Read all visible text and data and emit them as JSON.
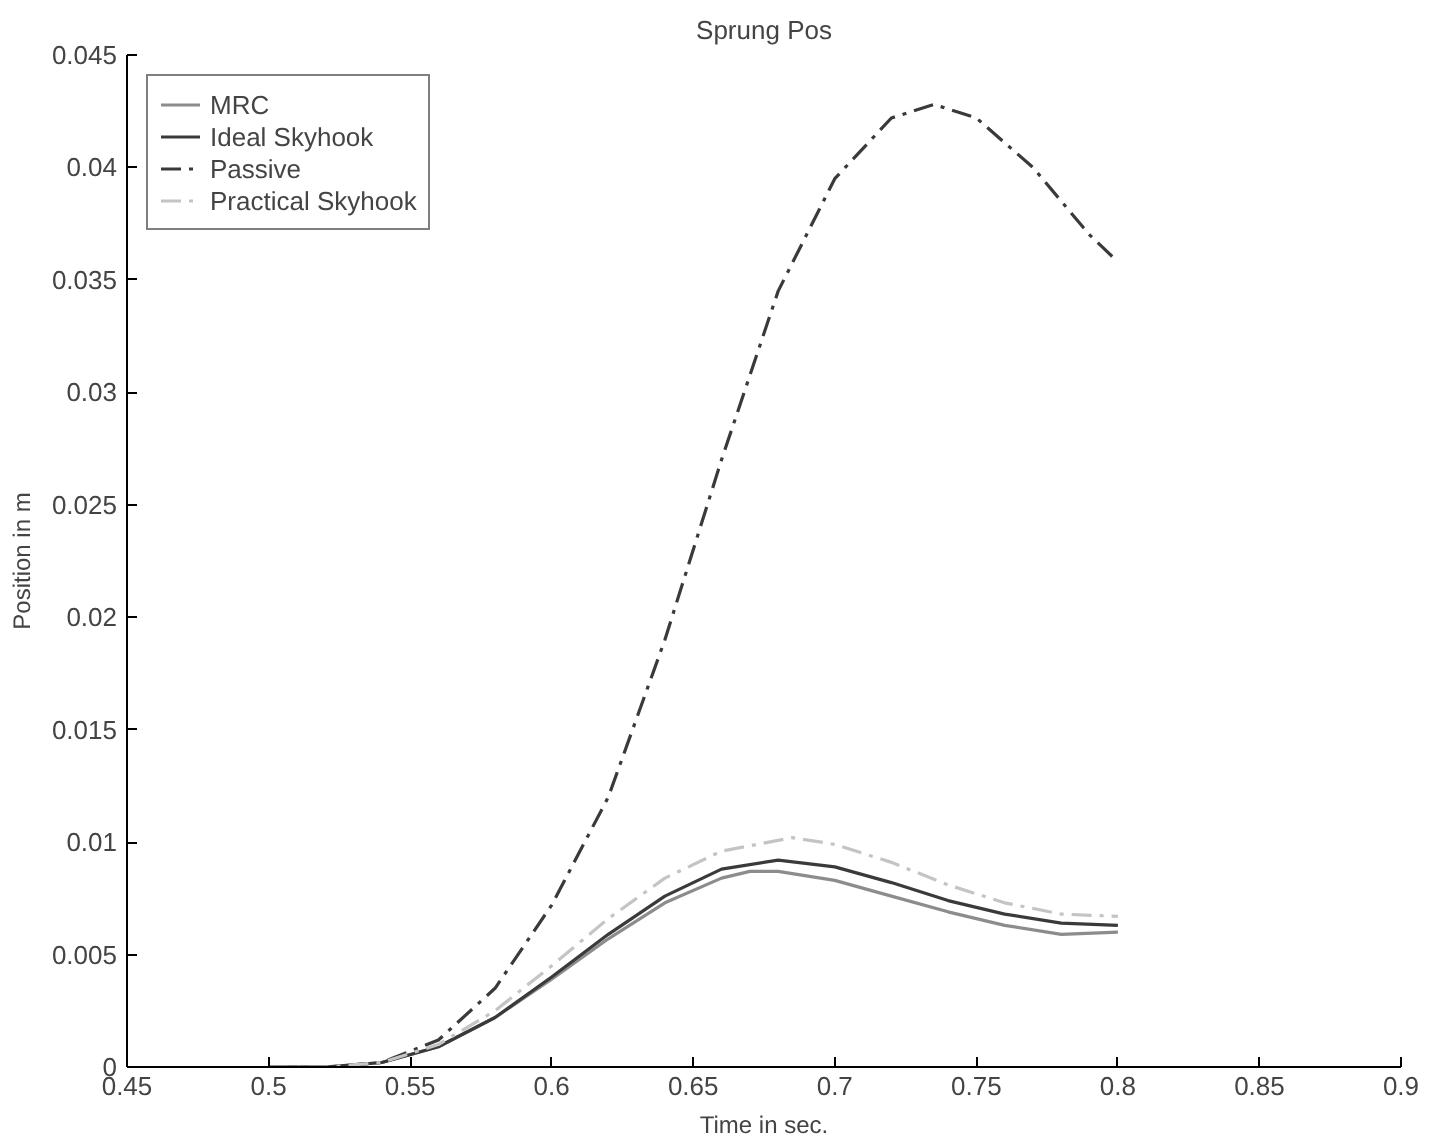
{
  "chart_data": {
    "type": "line",
    "title": "Sprung Pos",
    "xlabel": "Time in sec.",
    "ylabel": "Position in m",
    "xlim": [
      0.45,
      0.9
    ],
    "xticks": [
      0.45,
      0.5,
      0.55,
      0.6,
      0.65,
      0.7,
      0.75,
      0.8,
      0.85,
      0.9
    ],
    "ylim": [
      0,
      0.045
    ],
    "yticks": [
      0,
      0.005,
      0.01,
      0.015,
      0.02,
      0.025,
      0.03,
      0.035,
      0.04,
      0.045
    ],
    "grid": false,
    "legend": "top left",
    "series": [
      {
        "name": "MRC",
        "color": "#8c8c8c",
        "line_style": "solid",
        "x": [
          0.5,
          0.52,
          0.54,
          0.56,
          0.58,
          0.6,
          0.62,
          0.64,
          0.66,
          0.67,
          0.68,
          0.7,
          0.72,
          0.74,
          0.76,
          0.78,
          0.8
        ],
        "values": [
          0,
          0,
          0.0002,
          0.0009,
          0.0022,
          0.0039,
          0.0057,
          0.0073,
          0.0084,
          0.0087,
          0.0087,
          0.0083,
          0.0076,
          0.0069,
          0.0063,
          0.0059,
          0.006
        ]
      },
      {
        "name": "Ideal Skyhook",
        "color": "#3a3a3a",
        "line_style": "solid",
        "x": [
          0.5,
          0.52,
          0.54,
          0.56,
          0.58,
          0.6,
          0.62,
          0.64,
          0.66,
          0.68,
          0.7,
          0.72,
          0.74,
          0.76,
          0.78,
          0.8
        ],
        "values": [
          0,
          0,
          0.0002,
          0.0009,
          0.0022,
          0.004,
          0.0059,
          0.0076,
          0.0088,
          0.0092,
          0.0089,
          0.0082,
          0.0074,
          0.0068,
          0.0064,
          0.0063
        ]
      },
      {
        "name": "Passive",
        "color": "#3a3a3a",
        "line_style": "dashdot",
        "x": [
          0.5,
          0.52,
          0.54,
          0.56,
          0.58,
          0.6,
          0.62,
          0.64,
          0.66,
          0.68,
          0.7,
          0.72,
          0.735,
          0.75,
          0.77,
          0.79,
          0.8
        ],
        "values": [
          0,
          0,
          0.0002,
          0.0012,
          0.0035,
          0.0072,
          0.012,
          0.019,
          0.027,
          0.0345,
          0.0395,
          0.0422,
          0.0428,
          0.0422,
          0.04,
          0.037,
          0.0358
        ]
      },
      {
        "name": "Practical Skyhook",
        "color": "#c4c4c4",
        "line_style": "dashdot",
        "x": [
          0.5,
          0.52,
          0.54,
          0.56,
          0.58,
          0.6,
          0.62,
          0.64,
          0.66,
          0.685,
          0.7,
          0.72,
          0.74,
          0.76,
          0.78,
          0.8
        ],
        "values": [
          0,
          0,
          0.0002,
          0.001,
          0.0025,
          0.0045,
          0.0066,
          0.0084,
          0.0096,
          0.0102,
          0.0099,
          0.0091,
          0.0081,
          0.0073,
          0.0068,
          0.0067
        ]
      }
    ]
  }
}
